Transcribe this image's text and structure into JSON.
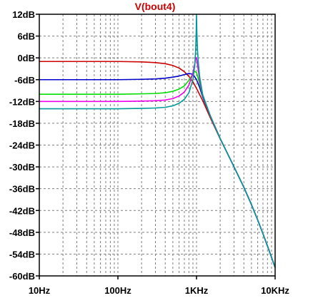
{
  "chart_data": {
    "type": "line",
    "title": "V(bout4)",
    "title_color": "#cc0000",
    "x_scale": "log",
    "xlim_hz": [
      10,
      10000
    ],
    "ylim_db": [
      -60,
      12
    ],
    "x_tick_values": [
      10,
      100,
      1000,
      10000
    ],
    "x_tick_labels": [
      "10Hz",
      "100Hz",
      "1KHz",
      "10KHz"
    ],
    "y_tick_values": [
      12,
      6,
      0,
      -6,
      -12,
      -18,
      -24,
      -30,
      -36,
      -42,
      -48,
      -54,
      -60
    ],
    "y_tick_labels": [
      "12dB",
      "6dB",
      "0dB",
      "-6dB",
      "-12dB",
      "-18dB",
      "-24dB",
      "-30dB",
      "-36dB",
      "-42dB",
      "-48dB",
      "-54dB",
      "-60dB"
    ],
    "grid": true,
    "series": [
      {
        "color": "#cc0000",
        "points": [
          [
            10,
            -1
          ],
          [
            100,
            -1
          ],
          [
            200,
            -1.1
          ],
          [
            300,
            -1.3
          ],
          [
            400,
            -1.6
          ],
          [
            500,
            -2.1
          ],
          [
            600,
            -2.8
          ],
          [
            700,
            -3.8
          ],
          [
            800,
            -5.1
          ],
          [
            900,
            -6.6
          ],
          [
            1000,
            -8.4
          ],
          [
            1200,
            -11.8
          ],
          [
            1500,
            -16.5
          ],
          [
            2000,
            -22.3
          ],
          [
            3000,
            -30
          ],
          [
            4000,
            -35.6
          ],
          [
            5000,
            -40.4
          ],
          [
            6000,
            -44.6
          ],
          [
            7000,
            -48.4
          ],
          [
            8000,
            -51.8
          ],
          [
            8800,
            -54.3
          ],
          [
            10000,
            -57.7
          ]
        ]
      },
      {
        "color": "#0000cc",
        "points": [
          [
            10,
            -6
          ],
          [
            100,
            -6
          ],
          [
            200,
            -5.9
          ],
          [
            300,
            -5.8
          ],
          [
            400,
            -5.6
          ],
          [
            500,
            -5.3
          ],
          [
            600,
            -5
          ],
          [
            700,
            -4.6
          ],
          [
            800,
            -4.3
          ],
          [
            900,
            -4.5
          ],
          [
            1000,
            -6
          ],
          [
            1100,
            -8.2
          ],
          [
            1200,
            -10.8
          ],
          [
            1500,
            -16
          ],
          [
            2000,
            -22.2
          ],
          [
            3000,
            -30
          ],
          [
            4000,
            -35.6
          ],
          [
            5000,
            -40.4
          ],
          [
            6000,
            -44.6
          ],
          [
            7000,
            -48.4
          ],
          [
            8000,
            -51.8
          ],
          [
            8800,
            -54.3
          ],
          [
            10000,
            -57.7
          ]
        ]
      },
      {
        "color": "#00dd00",
        "points": [
          [
            10,
            -10
          ],
          [
            100,
            -10
          ],
          [
            200,
            -9.9
          ],
          [
            300,
            -9.8
          ],
          [
            400,
            -9.6
          ],
          [
            500,
            -9.2
          ],
          [
            600,
            -8.6
          ],
          [
            700,
            -7.7
          ],
          [
            800,
            -6.2
          ],
          [
            900,
            -4.4
          ],
          [
            950,
            -3.7
          ],
          [
            1000,
            -4
          ],
          [
            1100,
            -7.2
          ],
          [
            1200,
            -10.4
          ],
          [
            1500,
            -16
          ],
          [
            2000,
            -22.2
          ],
          [
            3000,
            -30
          ],
          [
            4000,
            -35.6
          ],
          [
            5000,
            -40.4
          ],
          [
            6000,
            -44.6
          ],
          [
            7000,
            -48.4
          ],
          [
            8000,
            -51.8
          ],
          [
            8800,
            -54.3
          ],
          [
            10000,
            -57.7
          ]
        ]
      },
      {
        "color": "#ee00ee",
        "points": [
          [
            10,
            -12
          ],
          [
            100,
            -12
          ],
          [
            200,
            -11.9
          ],
          [
            300,
            -11.8
          ],
          [
            400,
            -11.6
          ],
          [
            500,
            -11.2
          ],
          [
            600,
            -10.5
          ],
          [
            700,
            -9.4
          ],
          [
            800,
            -7.5
          ],
          [
            900,
            -4.2
          ],
          [
            950,
            -1.6
          ],
          [
            980,
            0.1
          ],
          [
            1000,
            0
          ],
          [
            1050,
            -3.2
          ],
          [
            1100,
            -6.4
          ],
          [
            1200,
            -10.2
          ],
          [
            1500,
            -16
          ],
          [
            2000,
            -22.2
          ],
          [
            3000,
            -30
          ],
          [
            4000,
            -35.6
          ],
          [
            5000,
            -40.4
          ],
          [
            6000,
            -44.6
          ],
          [
            7000,
            -48.4
          ],
          [
            8000,
            -51.8
          ],
          [
            8800,
            -54.3
          ],
          [
            10000,
            -57.7
          ]
        ]
      },
      {
        "color": "#009999",
        "points": [
          [
            10,
            -14
          ],
          [
            100,
            -14
          ],
          [
            200,
            -13.9
          ],
          [
            300,
            -13.8
          ],
          [
            400,
            -13.6
          ],
          [
            500,
            -13.2
          ],
          [
            600,
            -12.5
          ],
          [
            700,
            -11.4
          ],
          [
            800,
            -9.6
          ],
          [
            900,
            -6
          ],
          [
            950,
            -2
          ],
          [
            975,
            2
          ],
          [
            990,
            7
          ],
          [
            1000,
            12
          ],
          [
            1010,
            7
          ],
          [
            1030,
            2
          ],
          [
            1060,
            -2
          ],
          [
            1100,
            -5.4
          ],
          [
            1200,
            -10.2
          ],
          [
            1500,
            -16
          ],
          [
            2000,
            -22.2
          ],
          [
            3000,
            -30
          ],
          [
            4000,
            -35.6
          ],
          [
            5000,
            -40.4
          ],
          [
            6000,
            -44.6
          ],
          [
            7000,
            -48.4
          ],
          [
            8000,
            -51.8
          ],
          [
            8800,
            -54.3
          ],
          [
            10000,
            -57.7
          ]
        ]
      }
    ]
  }
}
